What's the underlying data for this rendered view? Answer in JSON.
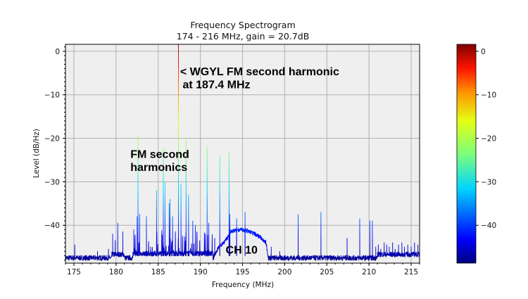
{
  "chart_data": {
    "type": "line",
    "title": "Frequency Spectrogram",
    "subtitle": "174 - 216 MHz, gain = 20.7dB",
    "xlabel": "Frequency (MHz)",
    "ylabel": "Level (dB/Hz)",
    "xlim": [
      174,
      216
    ],
    "ylim": [
      -48.7,
      1.6
    ],
    "x_ticks": [
      175,
      180,
      185,
      190,
      195,
      200,
      205,
      210,
      215
    ],
    "y_ticks": [
      0,
      -10,
      -20,
      -30,
      -40
    ],
    "y_tick_labels": [
      "0",
      "−10",
      "−20",
      "−30",
      "−40"
    ],
    "grid": true,
    "colormap": "jet",
    "colorbar": {
      "range": [
        -48.7,
        1.6
      ],
      "ticks": [
        0,
        -10,
        -20,
        -30,
        -40
      ],
      "tick_labels": [
        "0",
        "−10",
        "−20",
        "−30",
        "−40"
      ]
    },
    "noise_floor_db": -47.5,
    "ch10_plateau": {
      "x": [
        191.6,
        192.2,
        193.0,
        193.6,
        194.5,
        195.5,
        196.5,
        197.3,
        197.8,
        198.1
      ],
      "y": [
        -47,
        -45,
        -43.5,
        -41.5,
        -41,
        -41.2,
        -42,
        -43,
        -44,
        -48
      ]
    },
    "peaks": {
      "x": [
        175.1,
        177.8,
        179.1,
        179.6,
        179.9,
        180.2,
        180.8,
        182.1,
        182.5,
        182.6,
        182.8,
        183.6,
        184.1,
        184.8,
        185.6,
        185.8,
        186.3,
        186.4,
        186.7,
        187.4,
        187.7,
        188.3,
        188.6,
        189.1,
        189.4,
        189.6,
        190.8,
        191.0,
        191.7,
        192.3,
        193.4,
        193.5,
        194.3,
        195.3,
        198.4,
        199.4,
        201.6,
        204.3,
        207.4,
        208.9,
        210.1,
        210.4,
        210.8,
        211.1,
        211.4,
        211.8,
        212.1,
        212.4,
        212.8,
        213.1,
        213.5,
        213.9,
        214.2,
        214.6,
        215.0,
        215.4,
        215.8
      ],
      "y": [
        -44.5,
        -46,
        -45.5,
        -42,
        -43.5,
        -39.5,
        -41.5,
        -41,
        -38,
        -19.5,
        -37.5,
        -38,
        -45,
        -32,
        -22.3,
        -30,
        -35,
        -34,
        -38,
        1.6,
        -30.5,
        -19.8,
        -33,
        -39,
        -40,
        -41.5,
        -22,
        -39.5,
        -43,
        -24,
        -23,
        -37.5,
        -38.5,
        -37,
        -45,
        -46,
        -37.5,
        -37,
        -43,
        -38.5,
        -39,
        -39,
        -45,
        -44.5,
        -45.5,
        -44,
        -44.5,
        -45,
        -44,
        -45.5,
        -44.5,
        -44,
        -45,
        -44.5,
        -45,
        -44,
        -44.5
      ]
    },
    "annotations": [
      {
        "text": "< WGYL FM second harmonic",
        "x": 187.6,
        "y": -5.5
      },
      {
        "text": "at 187.4 MHz",
        "x": 187.9,
        "y": -8.5
      },
      {
        "text": "FM second",
        "x": 181.7,
        "y": -24.5
      },
      {
        "text": "harmonics",
        "x": 181.7,
        "y": -27.5
      },
      {
        "text": "CH 10",
        "x": 193.0,
        "y": -46.5
      }
    ]
  }
}
